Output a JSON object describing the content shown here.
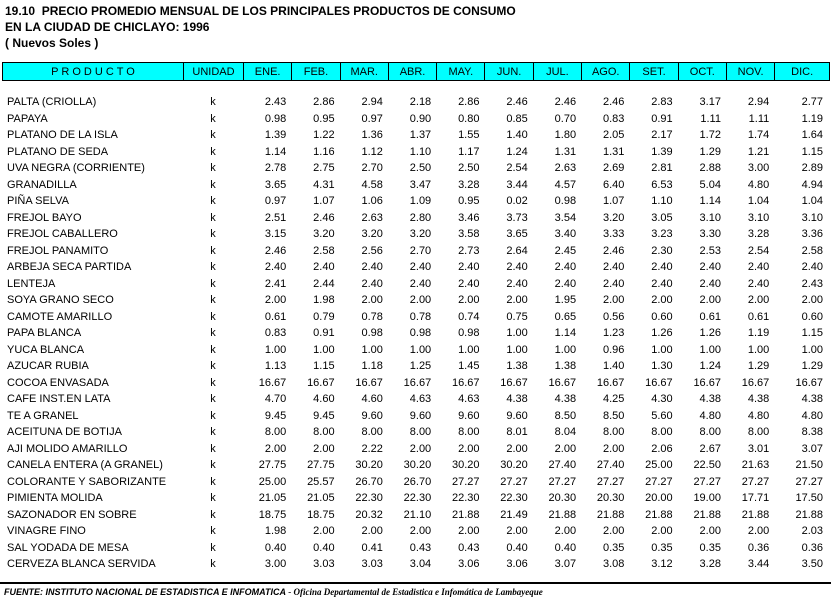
{
  "title": {
    "line1": "19.10  PRECIO PROMEDIO MENSUAL DE LOS PRINCIPALES PRODUCTOS DE CONSUMO",
    "line2": "EN LA CIUDAD DE CHICLAYO: 1996",
    "line3": "( Nuevos Soles )"
  },
  "colors": {
    "header_bg": "#00FFFF",
    "text": "#000000",
    "page_bg": "#FFFFFF"
  },
  "table": {
    "header": {
      "product": "P R O D U C T O",
      "unit": "UNIDAD",
      "months": [
        "ENE.",
        "FEB.",
        "MAR.",
        "ABR.",
        "MAY.",
        "JUN.",
        "JUL.",
        "AGO.",
        "SET.",
        "OCT.",
        "NOV.",
        "DIC."
      ]
    },
    "rows": [
      {
        "product": "PALTA (CRIOLLA)",
        "unit": "k",
        "values": [
          "2.43",
          "2.86",
          "2.94",
          "2.18",
          "2.86",
          "2.46",
          "2.46",
          "2.46",
          "2.83",
          "3.17",
          "2.94",
          "2.77"
        ]
      },
      {
        "product": "PAPAYA",
        "unit": "k",
        "values": [
          "0.98",
          "0.95",
          "0.97",
          "0.90",
          "0.80",
          "0.85",
          "0.70",
          "0.83",
          "0.91",
          "1.11",
          "1.11",
          "1.19"
        ]
      },
      {
        "product": "PLATANO DE LA ISLA",
        "unit": "k",
        "values": [
          "1.39",
          "1.22",
          "1.36",
          "1.37",
          "1.55",
          "1.40",
          "1.80",
          "2.05",
          "2.17",
          "1.72",
          "1.74",
          "1.64"
        ]
      },
      {
        "product": "PLATANO DE SEDA",
        "unit": "k",
        "values": [
          "1.14",
          "1.16",
          "1.12",
          "1.10",
          "1.17",
          "1.24",
          "1.31",
          "1.31",
          "1.39",
          "1.29",
          "1.21",
          "1.15"
        ]
      },
      {
        "product": "UVA NEGRA (CORRIENTE)",
        "unit": "k",
        "values": [
          "2.78",
          "2.75",
          "2.70",
          "2.50",
          "2.50",
          "2.54",
          "2.63",
          "2.69",
          "2.81",
          "2.88",
          "3.00",
          "2.89"
        ]
      },
      {
        "product": "GRANADILLA",
        "unit": "k",
        "values": [
          "3.65",
          "4.31",
          "4.58",
          "3.47",
          "3.28",
          "3.44",
          "4.57",
          "6.40",
          "6.53",
          "5.04",
          "4.80",
          "4.94"
        ]
      },
      {
        "product": "PIÑA SELVA",
        "unit": "k",
        "values": [
          "0.97",
          "1.07",
          "1.06",
          "1.09",
          "0.95",
          "0.02",
          "0.98",
          "1.07",
          "1.10",
          "1.14",
          "1.04",
          "1.04"
        ]
      },
      {
        "product": "FREJOL BAYO",
        "unit": "k",
        "values": [
          "2.51",
          "2.46",
          "2.63",
          "2.80",
          "3.46",
          "3.73",
          "3.54",
          "3.20",
          "3.05",
          "3.10",
          "3.10",
          "3.10"
        ]
      },
      {
        "product": "FREJOL CABALLERO",
        "unit": "k",
        "values": [
          "3.15",
          "3.20",
          "3.20",
          "3.20",
          "3.58",
          "3.65",
          "3.40",
          "3.33",
          "3.23",
          "3.30",
          "3.28",
          "3.36"
        ]
      },
      {
        "product": "FREJOL PANAMITO",
        "unit": "k",
        "values": [
          "2.46",
          "2.58",
          "2.56",
          "2.70",
          "2.73",
          "2.64",
          "2.45",
          "2.46",
          "2.30",
          "2.53",
          "2.54",
          "2.58"
        ]
      },
      {
        "product": "ARBEJA SECA PARTIDA",
        "unit": "k",
        "values": [
          "2.40",
          "2.40",
          "2.40",
          "2.40",
          "2.40",
          "2.40",
          "2.40",
          "2.40",
          "2.40",
          "2.40",
          "2.40",
          "2.40"
        ]
      },
      {
        "product": "LENTEJA",
        "unit": "k",
        "values": [
          "2.41",
          "2.44",
          "2.40",
          "2.40",
          "2.40",
          "2.40",
          "2.40",
          "2.40",
          "2.40",
          "2.40",
          "2.40",
          "2.43"
        ]
      },
      {
        "product": "SOYA GRANO SECO",
        "unit": "k",
        "values": [
          "2.00",
          "1.98",
          "2.00",
          "2.00",
          "2.00",
          "2.00",
          "1.95",
          "2.00",
          "2.00",
          "2.00",
          "2.00",
          "2.00"
        ]
      },
      {
        "product": "CAMOTE AMARILLO",
        "unit": "k",
        "values": [
          "0.61",
          "0.79",
          "0.78",
          "0.78",
          "0.74",
          "0.75",
          "0.65",
          "0.56",
          "0.60",
          "0.61",
          "0.61",
          "0.60"
        ]
      },
      {
        "product": "PAPA BLANCA",
        "unit": "k",
        "values": [
          "0.83",
          "0.91",
          "0.98",
          "0.98",
          "0.98",
          "1.00",
          "1.14",
          "1.23",
          "1.26",
          "1.26",
          "1.19",
          "1.15"
        ]
      },
      {
        "product": "YUCA BLANCA",
        "unit": "k",
        "values": [
          "1.00",
          "1.00",
          "1.00",
          "1.00",
          "1.00",
          "1.00",
          "1.00",
          "0.96",
          "1.00",
          "1.00",
          "1.00",
          "1.00"
        ]
      },
      {
        "product": "AZUCAR RUBIA",
        "unit": "k",
        "values": [
          "1.13",
          "1.15",
          "1.18",
          "1.25",
          "1.45",
          "1.38",
          "1.38",
          "1.40",
          "1.30",
          "1.24",
          "1.29",
          "1.29"
        ]
      },
      {
        "product": "COCOA ENVASADA",
        "unit": "k",
        "values": [
          "16.67",
          "16.67",
          "16.67",
          "16.67",
          "16.67",
          "16.67",
          "16.67",
          "16.67",
          "16.67",
          "16.67",
          "16.67",
          "16.67"
        ]
      },
      {
        "product": "CAFE INST.EN LATA",
        "unit": "k",
        "values": [
          "4.70",
          "4.60",
          "4.60",
          "4.63",
          "4.63",
          "4.38",
          "4.38",
          "4.25",
          "4.30",
          "4.38",
          "4.38",
          "4.38"
        ]
      },
      {
        "product": "TE A GRANEL",
        "unit": "k",
        "values": [
          "9.45",
          "9.45",
          "9.60",
          "9.60",
          "9.60",
          "9.60",
          "8.50",
          "8.50",
          "5.60",
          "4.80",
          "4.80",
          "4.80"
        ]
      },
      {
        "product": "ACEITUNA DE BOTIJA",
        "unit": "k",
        "values": [
          "8.00",
          "8.00",
          "8.00",
          "8.00",
          "8.00",
          "8.01",
          "8.04",
          "8.00",
          "8.00",
          "8.00",
          "8.00",
          "8.38"
        ]
      },
      {
        "product": "AJI MOLIDO AMARILLO",
        "unit": "k",
        "values": [
          "2.00",
          "2.00",
          "2.22",
          "2.00",
          "2.00",
          "2.00",
          "2.00",
          "2.00",
          "2.06",
          "2.67",
          "3.01",
          "3.07"
        ]
      },
      {
        "product": "CANELA ENTERA (A GRANEL)",
        "unit": "k",
        "values": [
          "27.75",
          "27.75",
          "30.20",
          "30.20",
          "30.20",
          "30.20",
          "27.40",
          "27.40",
          "25.00",
          "22.50",
          "21.63",
          "21.50"
        ]
      },
      {
        "product": "COLORANTE Y SABORIZANTE",
        "unit": "k",
        "values": [
          "25.00",
          "25.57",
          "26.70",
          "26.70",
          "27.27",
          "27.27",
          "27.27",
          "27.27",
          "27.27",
          "27.27",
          "27.27",
          "27.27"
        ]
      },
      {
        "product": "PIMIENTA MOLIDA",
        "unit": "k",
        "values": [
          "21.05",
          "21.05",
          "22.30",
          "22.30",
          "22.30",
          "22.30",
          "20.30",
          "20.30",
          "20.00",
          "19.00",
          "17.71",
          "17.50"
        ]
      },
      {
        "product": "SAZONADOR EN SOBRE",
        "unit": "k",
        "values": [
          "18.75",
          "18.75",
          "20.32",
          "21.10",
          "21.88",
          "21.49",
          "21.88",
          "21.88",
          "21.88",
          "21.88",
          "21.88",
          "21.88"
        ]
      },
      {
        "product": "VINAGRE FINO",
        "unit": "k",
        "values": [
          "1.98",
          "2.00",
          "2.00",
          "2.00",
          "2.00",
          "2.00",
          "2.00",
          "2.00",
          "2.00",
          "2.00",
          "2.00",
          "2.03"
        ]
      },
      {
        "product": "SAL YODADA DE MESA",
        "unit": "k",
        "values": [
          "0.40",
          "0.40",
          "0.41",
          "0.43",
          "0.43",
          "0.40",
          "0.40",
          "0.35",
          "0.35",
          "0.35",
          "0.36",
          "0.36"
        ]
      },
      {
        "product": "CERVEZA BLANCA SERVIDA",
        "unit": "k",
        "values": [
          "3.00",
          "3.03",
          "3.03",
          "3.04",
          "3.06",
          "3.06",
          "3.07",
          "3.08",
          "3.12",
          "3.28",
          "3.44",
          "3.50"
        ]
      }
    ]
  },
  "footer": {
    "source_main": "FUENTE: INSTITUTO NACIONAL DE ESTADISTICA E INFOMATICA",
    "source_office": " - Oficina Departamental de Estadistica e Infomática de Lambayeque"
  }
}
